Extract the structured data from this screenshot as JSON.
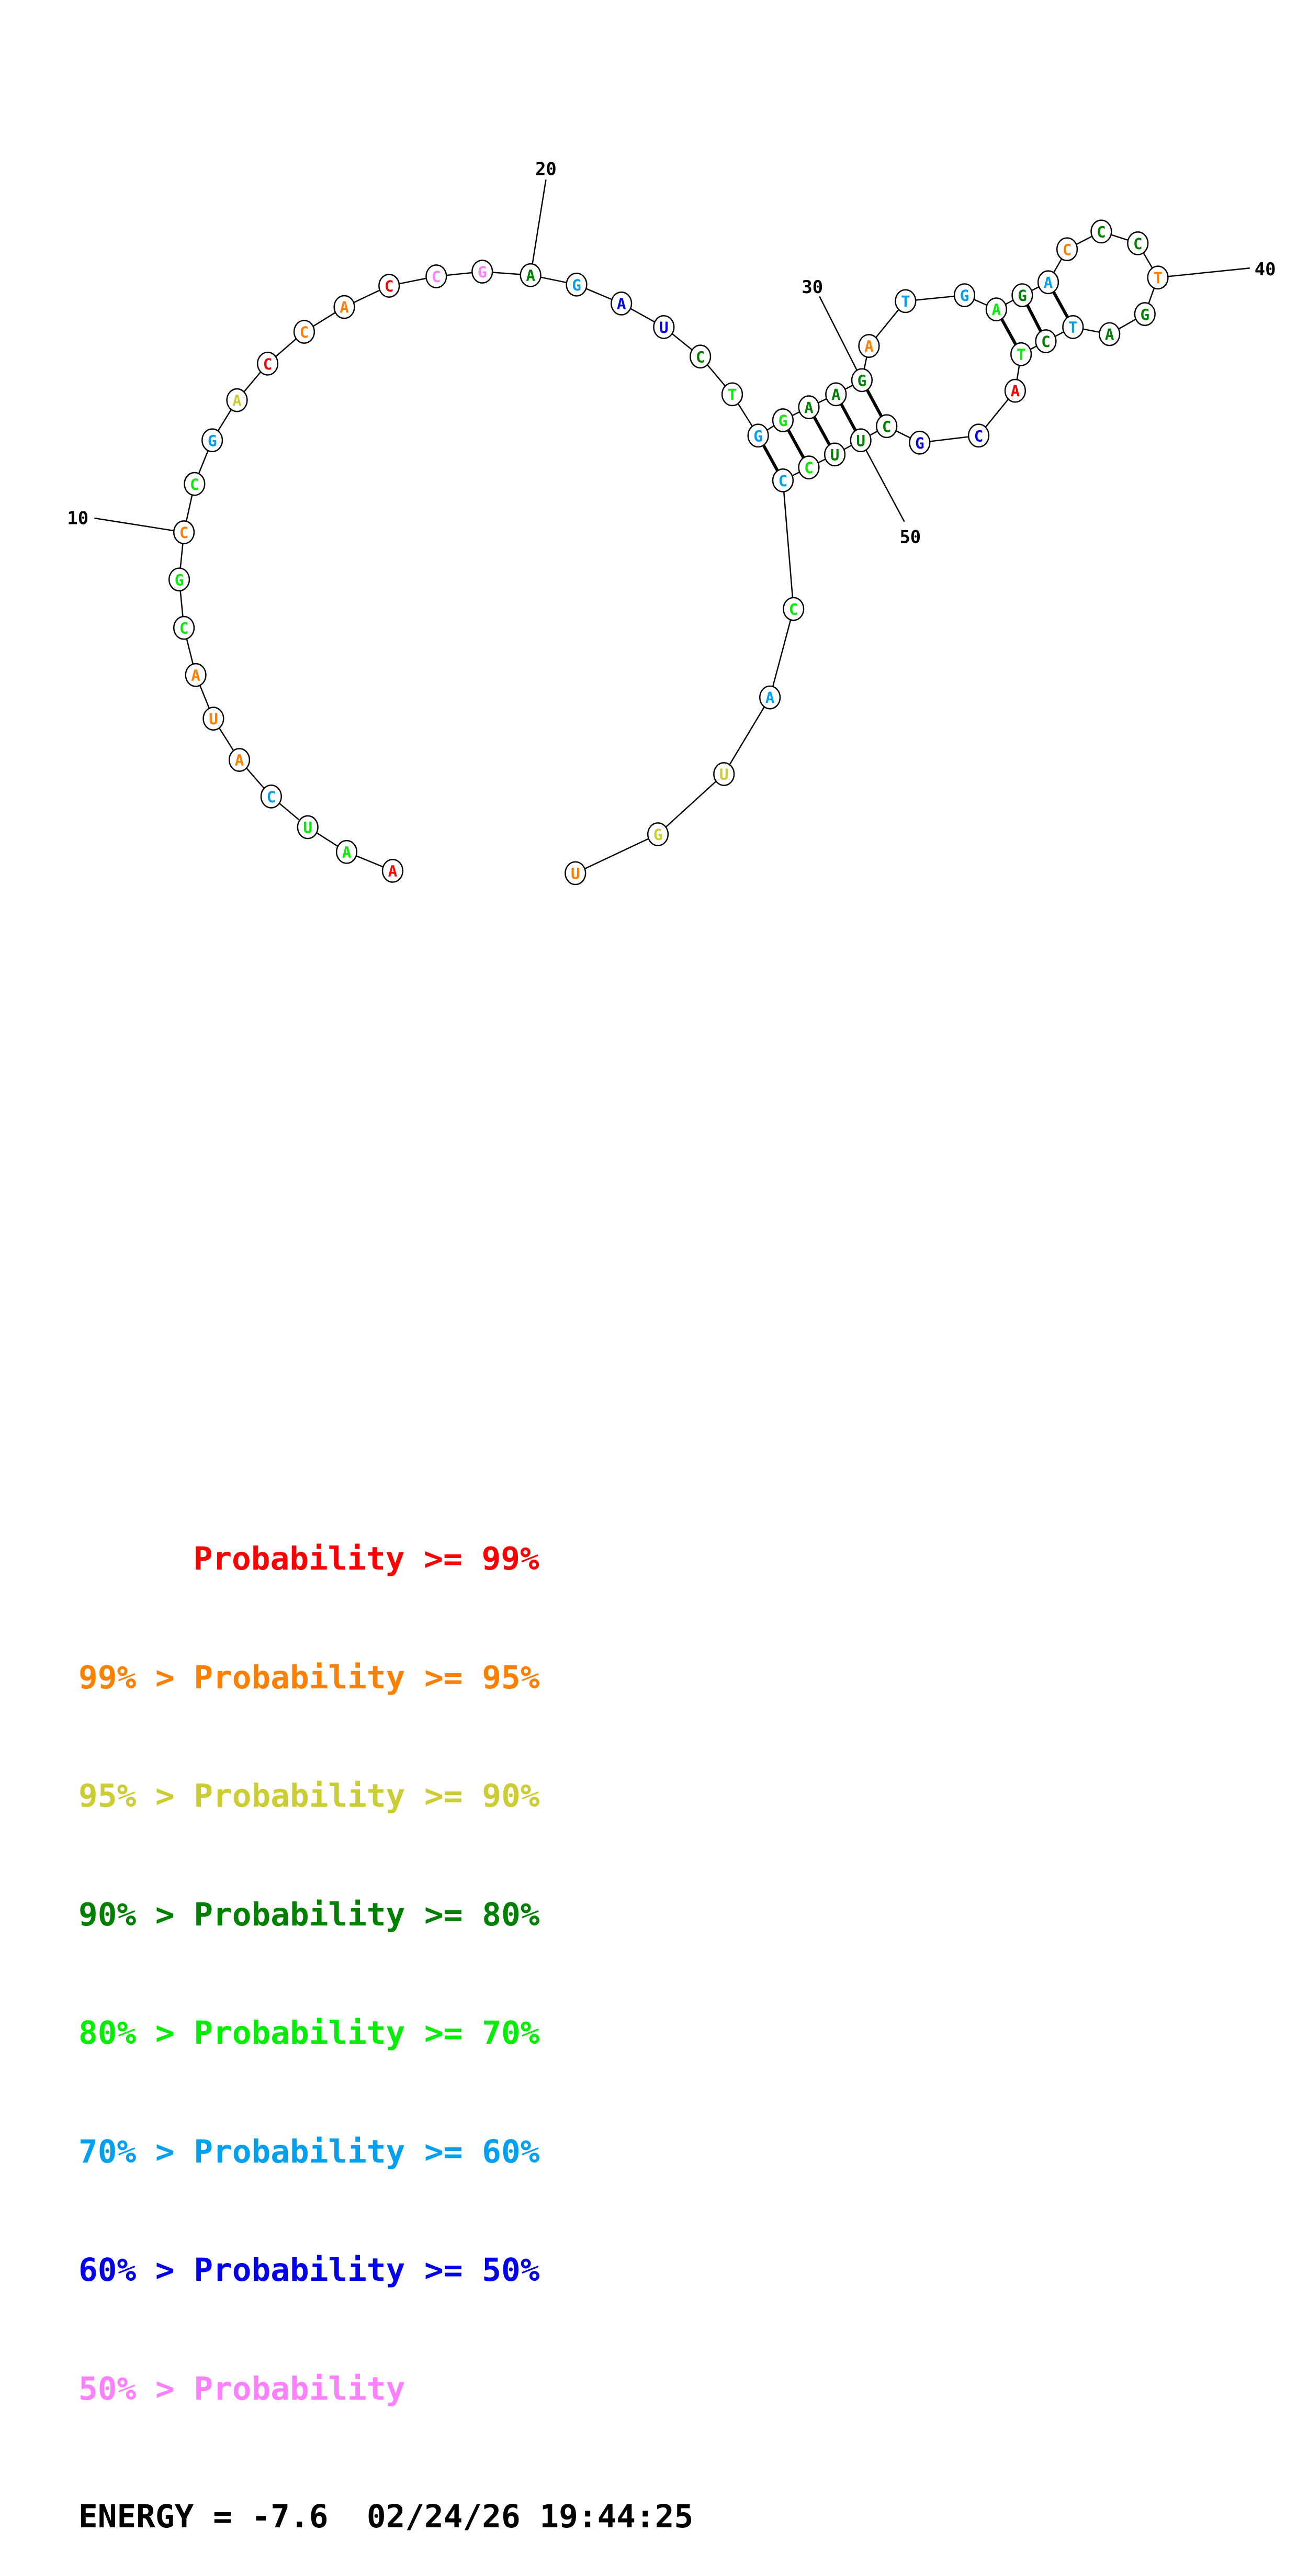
{
  "colors": {
    "red": "#ff0000",
    "orange": "#ff8000",
    "yellow": "#cccc33",
    "darkgreen": "#008000",
    "green": "#00ee00",
    "lightblue": "#00a0f0",
    "blue": "#0000ee",
    "pink": "#ff80ff"
  },
  "sequence": [
    {
      "n": 1,
      "base": "A",
      "color": "red"
    },
    {
      "n": 2,
      "base": "A",
      "color": "green"
    },
    {
      "n": 3,
      "base": "U",
      "color": "green"
    },
    {
      "n": 4,
      "base": "C",
      "color": "lightblue"
    },
    {
      "n": 5,
      "base": "A",
      "color": "orange"
    },
    {
      "n": 6,
      "base": "U",
      "color": "orange"
    },
    {
      "n": 7,
      "base": "A",
      "color": "orange"
    },
    {
      "n": 8,
      "base": "C",
      "color": "green"
    },
    {
      "n": 9,
      "base": "G",
      "color": "green"
    },
    {
      "n": 10,
      "base": "C",
      "color": "orange"
    },
    {
      "n": 11,
      "base": "C",
      "color": "green"
    },
    {
      "n": 12,
      "base": "G",
      "color": "lightblue"
    },
    {
      "n": 13,
      "base": "A",
      "color": "yellow"
    },
    {
      "n": 14,
      "base": "C",
      "color": "red"
    },
    {
      "n": 15,
      "base": "C",
      "color": "orange"
    },
    {
      "n": 16,
      "base": "A",
      "color": "orange"
    },
    {
      "n": 17,
      "base": "C",
      "color": "red"
    },
    {
      "n": 18,
      "base": "C",
      "color": "pink"
    },
    {
      "n": 19,
      "base": "G",
      "color": "pink"
    },
    {
      "n": 20,
      "base": "A",
      "color": "darkgreen"
    },
    {
      "n": 21,
      "base": "G",
      "color": "lightblue"
    },
    {
      "n": 22,
      "base": "A",
      "color": "blue"
    },
    {
      "n": 23,
      "base": "U",
      "color": "blue"
    },
    {
      "n": 24,
      "base": "C",
      "color": "darkgreen"
    },
    {
      "n": 25,
      "base": "T",
      "color": "green"
    },
    {
      "n": 26,
      "base": "G",
      "color": "lightblue"
    },
    {
      "n": 27,
      "base": "G",
      "color": "green"
    },
    {
      "n": 28,
      "base": "A",
      "color": "darkgreen"
    },
    {
      "n": 29,
      "base": "A",
      "color": "darkgreen"
    },
    {
      "n": 30,
      "base": "G",
      "color": "darkgreen"
    },
    {
      "n": 31,
      "base": "A",
      "color": "orange"
    },
    {
      "n": 32,
      "base": "T",
      "color": "lightblue"
    },
    {
      "n": 33,
      "base": "G",
      "color": "lightblue"
    },
    {
      "n": 34,
      "base": "A",
      "color": "green"
    },
    {
      "n": 35,
      "base": "G",
      "color": "darkgreen"
    },
    {
      "n": 36,
      "base": "A",
      "color": "lightblue"
    },
    {
      "n": 37,
      "base": "C",
      "color": "orange"
    },
    {
      "n": 38,
      "base": "C",
      "color": "darkgreen"
    },
    {
      "n": 39,
      "base": "C",
      "color": "darkgreen"
    },
    {
      "n": 40,
      "base": "T",
      "color": "orange"
    },
    {
      "n": 41,
      "base": "G",
      "color": "darkgreen"
    },
    {
      "n": 42,
      "base": "A",
      "color": "darkgreen"
    },
    {
      "n": 43,
      "base": "T",
      "color": "lightblue"
    },
    {
      "n": 44,
      "base": "C",
      "color": "darkgreen"
    },
    {
      "n": 45,
      "base": "T",
      "color": "green"
    },
    {
      "n": 46,
      "base": "A",
      "color": "red"
    },
    {
      "n": 47,
      "base": "C",
      "color": "blue"
    },
    {
      "n": 48,
      "base": "G",
      "color": "blue"
    },
    {
      "n": 49,
      "base": "C",
      "color": "darkgreen"
    },
    {
      "n": 50,
      "base": "U",
      "color": "darkgreen"
    },
    {
      "n": 51,
      "base": "U",
      "color": "darkgreen"
    },
    {
      "n": 52,
      "base": "C",
      "color": "green"
    },
    {
      "n": 53,
      "base": "C",
      "color": "lightblue"
    },
    {
      "n": 54,
      "base": "C",
      "color": "green"
    },
    {
      "n": 55,
      "base": "A",
      "color": "lightblue"
    },
    {
      "n": 56,
      "base": "U",
      "color": "yellow"
    },
    {
      "n": 57,
      "base": "G",
      "color": "yellow"
    },
    {
      "n": 58,
      "base": "U",
      "color": "orange"
    }
  ],
  "pairs": [
    [
      26,
      53
    ],
    [
      27,
      52
    ],
    [
      28,
      51
    ],
    [
      29,
      50
    ],
    [
      30,
      49
    ],
    [
      34,
      45
    ],
    [
      35,
      44
    ],
    [
      36,
      43
    ]
  ],
  "position_labels": [
    "10",
    "20",
    "30",
    "40",
    "50"
  ],
  "legend": [
    {
      "left": "",
      "right": "Probability >= 99%",
      "color": "red"
    },
    {
      "left": "99% > ",
      "right": "Probability >= 95%",
      "color": "orange"
    },
    {
      "left": "95% > ",
      "right": "Probability >= 90%",
      "color": "yellow"
    },
    {
      "left": "90% > ",
      "right": "Probability >= 80%",
      "color": "darkgreen"
    },
    {
      "left": "80% > ",
      "right": "Probability >= 70%",
      "color": "green"
    },
    {
      "left": "70% > ",
      "right": "Probability >= 60%",
      "color": "lightblue"
    },
    {
      "left": "60% > ",
      "right": "Probability >= 50%",
      "color": "blue"
    },
    {
      "left": "50% > ",
      "right": "Probability",
      "color": "pink"
    }
  ],
  "energy_line": "ENERGY = -7.6  02/24/26 19:44:25"
}
